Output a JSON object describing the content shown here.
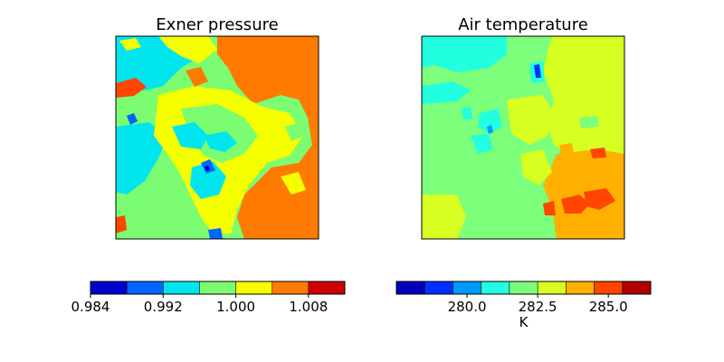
{
  "chart_data": [
    {
      "type": "heatmap",
      "title": "Exner pressure",
      "colorbar": {
        "orientation": "horizontal",
        "levels": [
          0.984,
          0.988,
          0.992,
          0.996,
          1.0,
          1.004,
          1.008,
          1.012
        ],
        "tick_values": [
          0.984,
          0.992,
          1.0,
          1.008
        ],
        "tick_labels": [
          "0.984",
          "0.992",
          "1.000",
          "1.008"
        ],
        "label": "",
        "colors": [
          "#0000cd",
          "#0066ff",
          "#00e5ee",
          "#7cfc71",
          "#f5ff00",
          "#ff7a00",
          "#cc0000"
        ]
      },
      "field_summary": "contour-filled field; right half mostly highest band (orange), left/centre mixed cyan-green-yellow with fine-scale structure"
    },
    {
      "type": "heatmap",
      "title": "Air temperature",
      "colorbar": {
        "orientation": "horizontal",
        "levels": [
          277.5,
          278.5,
          279.5,
          280.5,
          281.5,
          282.5,
          283.5,
          284.5,
          285.5,
          286.5
        ],
        "tick_values": [
          280.0,
          282.5,
          285.0
        ],
        "tick_labels": [
          "280.0",
          "282.5",
          "285.0"
        ],
        "label": "K",
        "colors": [
          "#0000b8",
          "#0030ff",
          "#0099ff",
          "#22ffe0",
          "#7cff7a",
          "#d8ff22",
          "#ffb000",
          "#ff4500",
          "#b20000"
        ]
      },
      "field_summary": "contour-filled field; left mostly green/cyan, right mostly yellow-green, bottom-right orange with red patches"
    }
  ]
}
